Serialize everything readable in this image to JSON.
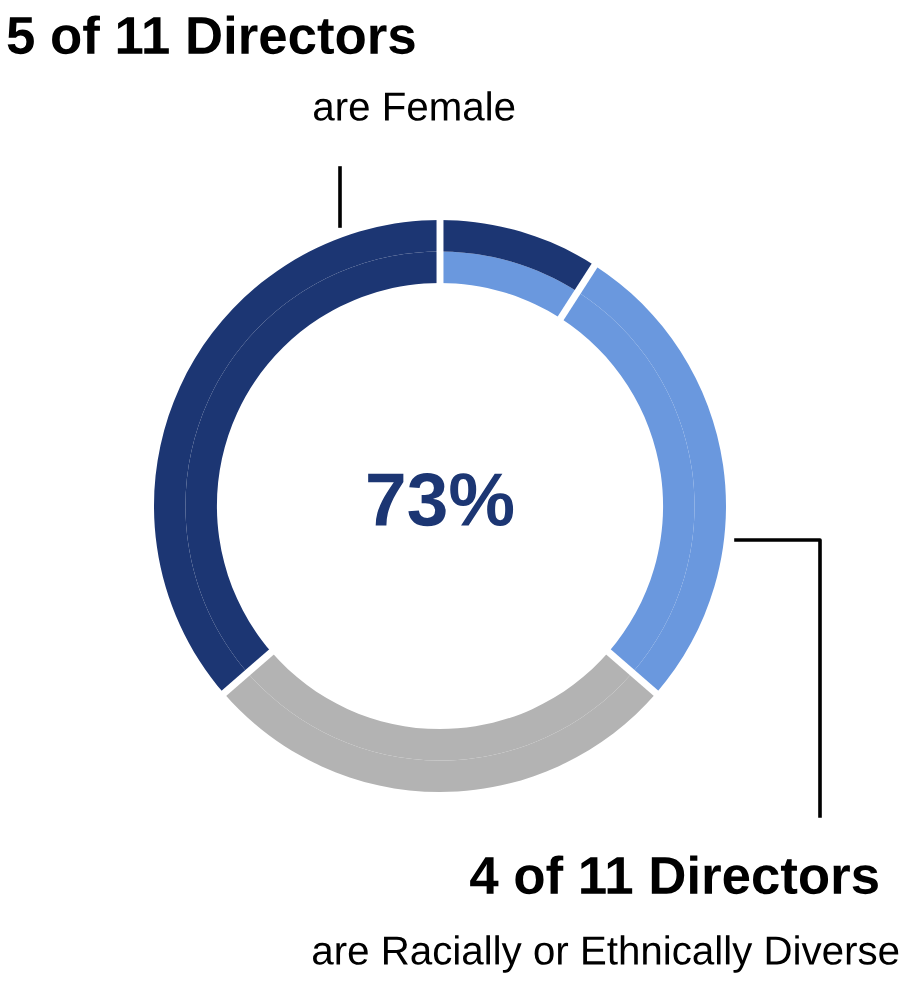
{
  "chart_data": {
    "type": "donut",
    "categories": [
      null,
      null,
      null,
      null
    ],
    "series": [
      {
        "values": [
          36.36,
          27.27,
          27.27,
          9.09
        ],
        "colors": [
          "#1c3673",
          "#b3b3b3",
          "#6a98de",
          "#6a98de"
        ]
      },
      {
        "values": [
          36.36,
          27.27,
          27.27,
          9.09
        ],
        "colors": [
          "#1c3673",
          "#b3b3b3",
          "#6a98de",
          "#1c3673"
        ]
      }
    ],
    "annotations": [
      "5 of 11 Directors",
      "are Female",
      "73%",
      "4 of 11 Directors",
      "are Racially or Ethnically Diverse"
    ]
  }
}
